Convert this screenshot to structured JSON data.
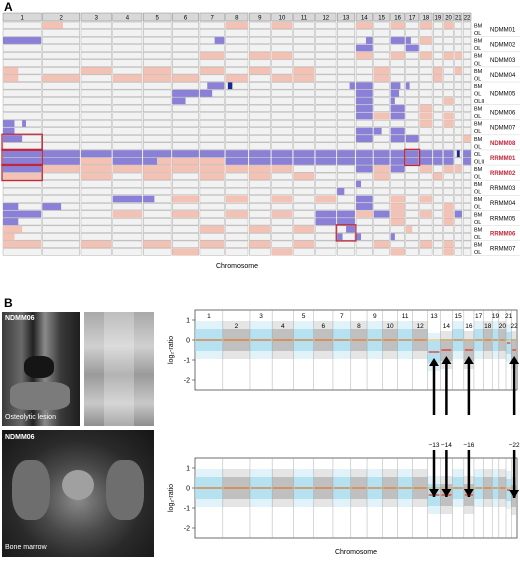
{
  "figure": {
    "panel_a_label": "A",
    "panel_b_label": "B"
  },
  "heatmap": {
    "chromosomes": [
      "1",
      "2",
      "3",
      "4",
      "5",
      "6",
      "7",
      "8",
      "9",
      "10",
      "11",
      "12",
      "13",
      "14",
      "15",
      "16",
      "17",
      "18",
      "19",
      "20",
      "21",
      "22"
    ],
    "xlabel": "Chromosome",
    "row_labels": [
      "BM",
      "OL",
      "BM",
      "OL",
      "BM",
      "OL",
      "BM",
      "OL",
      "BM",
      "OL",
      "OLII",
      "BM",
      "OL",
      "BM",
      "OL",
      "BM",
      "OL",
      "OL",
      "OLII",
      "BM",
      "OL",
      "BM",
      "OL",
      "BM",
      "OL",
      "BM",
      "OL",
      "BM",
      "OL",
      "BM",
      "OL"
    ],
    "samples": [
      {
        "name": "NDMM01",
        "highlight": false
      },
      {
        "name": "NDMM02",
        "highlight": false
      },
      {
        "name": "NDMM03",
        "highlight": false
      },
      {
        "name": "NDMM04",
        "highlight": false
      },
      {
        "name": "NDMM05",
        "highlight": false
      },
      {
        "name": "NDMM06",
        "highlight": false
      },
      {
        "name": "NDMM07",
        "highlight": false
      },
      {
        "name": "NDMM08",
        "highlight": true
      },
      {
        "name": "RRMM01",
        "highlight": true
      },
      {
        "name": "RRMM02",
        "highlight": true
      },
      {
        "name": "RRMM03",
        "highlight": false
      },
      {
        "name": "RRMM04",
        "highlight": false
      },
      {
        "name": "RRMM05",
        "highlight": false
      },
      {
        "name": "RRMM06",
        "highlight": true
      },
      {
        "name": "RRMM07",
        "highlight": false
      }
    ],
    "colors": {
      "gain": "#f4c2b4",
      "loss": "#8a80d8",
      "deep_loss": "#1a2a8a",
      "neutral": "#f2f2f2",
      "highlight": "#c0283a"
    }
  },
  "mri": {
    "top_label": "NDMM06",
    "top_caption": "Osteolytic lesion",
    "bottom_label": "NDMM06",
    "bottom_caption": "Bone marrow"
  },
  "cnv_plots": [
    {
      "chromosomes": [
        "1",
        "2",
        "3",
        "4",
        "5",
        "6",
        "7",
        "8",
        "9",
        "10",
        "11",
        "12",
        "13",
        "14",
        "15",
        "16",
        "17",
        "18",
        "19",
        "20",
        "21",
        "22"
      ],
      "ylabel": "log₂-ratio",
      "xlabel": "",
      "yticks": [
        1,
        0,
        -1,
        -2
      ],
      "ylim": [
        -2.5,
        1.5
      ],
      "annotations": [],
      "arrows": [
        "13",
        "14",
        "16",
        "22"
      ],
      "segment_means": [
        0,
        0,
        0,
        0,
        0,
        0,
        0,
        0,
        0,
        0,
        0,
        0,
        -0.6,
        -0.5,
        0,
        -0.5,
        0,
        0,
        0,
        0,
        -0.15,
        -0.5
      ]
    },
    {
      "chromosomes": [
        "1",
        "2",
        "3",
        "4",
        "5",
        "6",
        "7",
        "8",
        "9",
        "10",
        "11",
        "12",
        "13",
        "14",
        "15",
        "16",
        "17",
        "18",
        "19",
        "20",
        "21",
        "22"
      ],
      "ylabel": "log₂-ratio",
      "xlabel": "Chromosome",
      "yticks": [
        1,
        0,
        -1,
        -2
      ],
      "ylim": [
        -2.5,
        1.5
      ],
      "annotations": [
        "−13",
        "−14",
        "−16",
        "−22"
      ],
      "arrows": [
        "13",
        "14",
        "16",
        "22"
      ],
      "segment_means": [
        0,
        0,
        0,
        0,
        0,
        0,
        0,
        0,
        0,
        0,
        0,
        0,
        -0.35,
        -0.35,
        0,
        -0.35,
        0,
        0,
        0,
        0,
        -0.1,
        -0.4
      ]
    }
  ]
}
